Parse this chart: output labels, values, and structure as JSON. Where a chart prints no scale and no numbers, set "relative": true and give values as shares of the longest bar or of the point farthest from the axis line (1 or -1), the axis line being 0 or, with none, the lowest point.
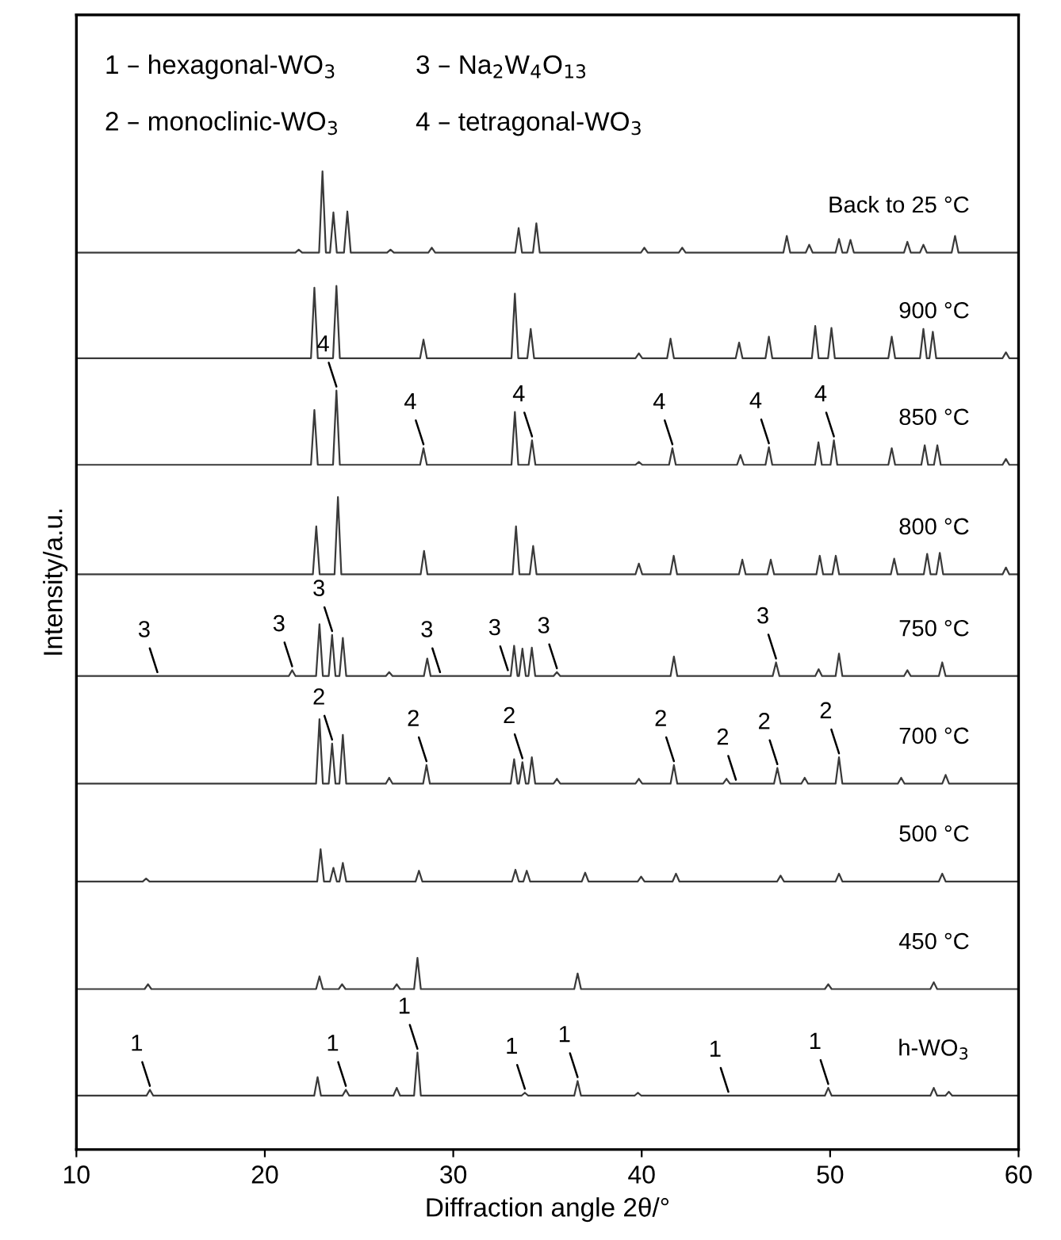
{
  "chart_data": {
    "type": "line",
    "relative": true,
    "xlabel": "Diffraction angle 2θ/°",
    "ylabel": "Intensity/a.u.",
    "xlim": [
      10,
      60
    ],
    "xticks": [
      10,
      20,
      30,
      40,
      50,
      60
    ],
    "tick_labels": "x",
    "series": [
      {
        "name": "Back to 25 °C",
        "color": "#3a3a3a",
        "x": [
          10,
          21.62,
          21.8,
          21.98,
          22.88,
          23.06,
          23.24,
          23.46,
          23.64,
          23.82,
          24.2,
          24.38,
          24.56,
          26.49,
          26.67,
          26.85,
          28.68,
          28.86,
          29.04,
          33.29,
          33.47,
          33.65,
          34.23,
          34.41,
          34.59,
          39.96,
          40.14,
          40.32,
          41.97,
          42.15,
          42.33,
          47.52,
          47.7,
          47.88,
          48.71,
          48.89,
          49.07,
          50.29,
          50.47,
          50.65,
          50.9,
          51.08,
          51.26,
          53.92,
          54.1,
          54.28,
          54.77,
          54.95,
          55.13,
          56.45,
          56.63,
          56.81,
          60
        ],
        "values": [
          0.917,
          0.917,
          0.92,
          0.917,
          0.917,
          1.0,
          0.917,
          0.917,
          0.958,
          0.917,
          0.917,
          0.959,
          0.917,
          0.917,
          0.92,
          0.917,
          0.917,
          0.922,
          0.917,
          0.917,
          0.942,
          0.917,
          0.917,
          0.947,
          0.917,
          0.917,
          0.922,
          0.917,
          0.917,
          0.922,
          0.917,
          0.917,
          0.934,
          0.917,
          0.917,
          0.925,
          0.917,
          0.917,
          0.931,
          0.917,
          0.917,
          0.93,
          0.917,
          0.917,
          0.928,
          0.917,
          0.917,
          0.925,
          0.917,
          0.917,
          0.934,
          0.917,
          0.917
        ]
      },
      {
        "name": "900 °C",
        "color": "#3a3a3a",
        "x": [
          10,
          22.45,
          22.63,
          22.81,
          23.62,
          23.8,
          23.98,
          28.24,
          28.42,
          28.6,
          33.09,
          33.27,
          33.45,
          33.93,
          34.11,
          34.29,
          39.67,
          39.85,
          40.03,
          41.35,
          41.53,
          41.71,
          44.99,
          45.17,
          45.35,
          46.57,
          46.75,
          46.93,
          49.03,
          49.21,
          49.39,
          49.89,
          50.07,
          50.25,
          53.09,
          53.27,
          53.45,
          54.77,
          54.95,
          55.13,
          55.27,
          55.45,
          55.63,
          59.15,
          59.33,
          59.51,
          60
        ],
        "values": [
          0.809,
          0.809,
          0.881,
          0.809,
          0.809,
          0.883,
          0.809,
          0.809,
          0.828,
          0.809,
          0.809,
          0.875,
          0.809,
          0.809,
          0.839,
          0.809,
          0.809,
          0.814,
          0.809,
          0.809,
          0.829,
          0.809,
          0.809,
          0.825,
          0.809,
          0.809,
          0.831,
          0.809,
          0.809,
          0.842,
          0.809,
          0.809,
          0.84,
          0.809,
          0.809,
          0.831,
          0.809,
          0.809,
          0.839,
          0.809,
          0.809,
          0.836,
          0.809,
          0.809,
          0.815,
          0.809,
          0.809
        ]
      },
      {
        "name": "850 °C",
        "color": "#3a3a3a",
        "x": [
          10,
          22.45,
          22.63,
          22.81,
          23.62,
          23.8,
          23.98,
          28.24,
          28.42,
          28.6,
          33.09,
          33.27,
          33.45,
          34.0,
          34.18,
          34.36,
          39.67,
          39.85,
          40.03,
          41.45,
          41.63,
          41.81,
          45.06,
          45.24,
          45.42,
          46.57,
          46.75,
          46.93,
          49.2,
          49.38,
          49.56,
          50.02,
          50.2,
          50.38,
          53.09,
          53.27,
          53.45,
          54.84,
          55.02,
          55.2,
          55.51,
          55.69,
          55.87,
          59.15,
          59.33,
          59.51,
          60
        ],
        "values": [
          0.7,
          0.7,
          0.756,
          0.7,
          0.7,
          0.776,
          0.7,
          0.7,
          0.717,
          0.7,
          0.7,
          0.754,
          0.7,
          0.7,
          0.725,
          0.7,
          0.7,
          0.703,
          0.7,
          0.7,
          0.717,
          0.7,
          0.7,
          0.71,
          0.7,
          0.7,
          0.718,
          0.7,
          0.7,
          0.723,
          0.7,
          0.7,
          0.725,
          0.7,
          0.7,
          0.717,
          0.7,
          0.7,
          0.72,
          0.7,
          0.7,
          0.72,
          0.7,
          0.7,
          0.706,
          0.7,
          0.7
        ]
      },
      {
        "name": "800 °C",
        "color": "#3a3a3a",
        "x": [
          10,
          22.55,
          22.73,
          22.91,
          23.7,
          23.88,
          24.06,
          28.27,
          28.45,
          28.63,
          33.15,
          33.33,
          33.51,
          34.06,
          34.24,
          34.42,
          39.67,
          39.85,
          40.03,
          41.52,
          41.7,
          41.88,
          45.16,
          45.34,
          45.52,
          46.67,
          46.85,
          47.03,
          49.27,
          49.45,
          49.63,
          50.12,
          50.3,
          50.48,
          53.22,
          53.4,
          53.58,
          54.97,
          55.15,
          55.33,
          55.64,
          55.82,
          56.0,
          59.15,
          59.33,
          59.51,
          60
        ],
        "values": [
          0.588,
          0.588,
          0.637,
          0.588,
          0.588,
          0.667,
          0.588,
          0.588,
          0.612,
          0.588,
          0.588,
          0.637,
          0.588,
          0.588,
          0.617,
          0.588,
          0.588,
          0.599,
          0.588,
          0.588,
          0.607,
          0.588,
          0.588,
          0.603,
          0.588,
          0.588,
          0.603,
          0.588,
          0.588,
          0.607,
          0.588,
          0.588,
          0.607,
          0.588,
          0.588,
          0.604,
          0.588,
          0.588,
          0.609,
          0.588,
          0.588,
          0.61,
          0.588,
          0.588,
          0.595,
          0.588,
          0.588
        ]
      },
      {
        "name": "750 °C",
        "color": "#3a3a3a",
        "x": [
          10,
          21.27,
          21.45,
          21.63,
          22.72,
          22.9,
          23.08,
          23.39,
          23.57,
          23.75,
          23.96,
          24.14,
          24.32,
          26.42,
          26.6,
          26.78,
          28.44,
          28.62,
          28.8,
          33.05,
          33.23,
          33.41,
          33.49,
          33.67,
          33.85,
          33.99,
          34.17,
          34.35,
          35.32,
          35.5,
          35.68,
          41.53,
          41.71,
          41.89,
          46.95,
          47.13,
          47.31,
          49.21,
          49.39,
          49.57,
          50.29,
          50.47,
          50.65,
          53.92,
          54.1,
          54.28,
          55.77,
          55.95,
          56.13,
          60
        ],
        "values": [
          0.484,
          0.484,
          0.49,
          0.484,
          0.484,
          0.537,
          0.484,
          0.484,
          0.526,
          0.484,
          0.484,
          0.523,
          0.484,
          0.484,
          0.488,
          0.484,
          0.484,
          0.502,
          0.484,
          0.484,
          0.515,
          0.484,
          0.484,
          0.512,
          0.484,
          0.484,
          0.513,
          0.484,
          0.484,
          0.488,
          0.484,
          0.484,
          0.504,
          0.484,
          0.484,
          0.498,
          0.484,
          0.484,
          0.491,
          0.484,
          0.484,
          0.507,
          0.484,
          0.484,
          0.49,
          0.484,
          0.484,
          0.498,
          0.484,
          0.484
        ]
      },
      {
        "name": "700 °C",
        "color": "#3a3a3a",
        "x": [
          10,
          22.72,
          22.9,
          23.08,
          23.39,
          23.57,
          23.75,
          23.96,
          24.14,
          24.32,
          26.42,
          26.6,
          26.78,
          28.4,
          28.58,
          28.76,
          33.05,
          33.23,
          33.41,
          33.49,
          33.67,
          33.85,
          33.99,
          34.17,
          34.35,
          35.32,
          35.5,
          35.68,
          39.67,
          39.85,
          40.03,
          41.53,
          41.71,
          41.89,
          44.32,
          44.5,
          44.68,
          47.02,
          47.2,
          47.38,
          48.47,
          48.65,
          48.83,
          50.29,
          50.47,
          50.65,
          53.59,
          53.77,
          53.95,
          55.95,
          56.13,
          56.31,
          60
        ],
        "values": [
          0.374,
          0.374,
          0.44,
          0.374,
          0.374,
          0.415,
          0.374,
          0.374,
          0.424,
          0.374,
          0.374,
          0.38,
          0.374,
          0.374,
          0.393,
          0.374,
          0.374,
          0.399,
          0.374,
          0.374,
          0.396,
          0.374,
          0.374,
          0.401,
          0.374,
          0.374,
          0.379,
          0.374,
          0.374,
          0.379,
          0.374,
          0.374,
          0.393,
          0.374,
          0.374,
          0.379,
          0.374,
          0.374,
          0.39,
          0.374,
          0.374,
          0.38,
          0.374,
          0.374,
          0.401,
          0.374,
          0.374,
          0.38,
          0.374,
          0.374,
          0.383,
          0.374,
          0.374
        ]
      },
      {
        "name": "500 °C",
        "color": "#3a3a3a",
        "x": [
          10,
          13.52,
          13.7,
          13.88,
          22.78,
          22.96,
          23.14,
          23.46,
          23.64,
          23.82,
          23.96,
          24.14,
          24.32,
          28.0,
          28.18,
          28.36,
          33.12,
          33.3,
          33.48,
          33.72,
          33.9,
          34.08,
          36.82,
          37.0,
          37.18,
          39.79,
          39.97,
          40.15,
          41.64,
          41.82,
          42.0,
          47.19,
          47.37,
          47.55,
          50.29,
          50.47,
          50.65,
          55.77,
          55.95,
          56.13,
          60
        ],
        "values": [
          0.274,
          0.274,
          0.277,
          0.274,
          0.274,
          0.307,
          0.274,
          0.274,
          0.288,
          0.274,
          0.274,
          0.293,
          0.274,
          0.274,
          0.285,
          0.274,
          0.274,
          0.286,
          0.274,
          0.274,
          0.285,
          0.274,
          0.274,
          0.283,
          0.274,
          0.274,
          0.279,
          0.274,
          0.274,
          0.282,
          0.274,
          0.274,
          0.28,
          0.274,
          0.274,
          0.282,
          0.274,
          0.274,
          0.282,
          0.274,
          0.274
        ]
      },
      {
        "name": "450 °C",
        "color": "#3a3a3a",
        "x": [
          10,
          13.62,
          13.8,
          13.98,
          22.72,
          22.9,
          23.08,
          23.92,
          24.1,
          24.28,
          26.82,
          27.0,
          27.18,
          27.92,
          28.1,
          28.28,
          36.42,
          36.6,
          36.78,
          49.72,
          49.9,
          50.08,
          55.32,
          55.5,
          55.68,
          60
        ],
        "values": [
          0.164,
          0.164,
          0.169,
          0.164,
          0.164,
          0.177,
          0.164,
          0.164,
          0.169,
          0.164,
          0.164,
          0.169,
          0.164,
          0.164,
          0.196,
          0.164,
          0.164,
          0.18,
          0.164,
          0.164,
          0.169,
          0.164,
          0.164,
          0.171,
          0.164,
          0.164
        ]
      },
      {
        "name": "h-WO$_{3}$",
        "color": "#3a3a3a",
        "x": [
          10,
          13.72,
          13.9,
          14.08,
          22.62,
          22.8,
          22.98,
          24.12,
          24.3,
          24.48,
          26.82,
          27.0,
          27.18,
          27.92,
          28.1,
          28.28,
          33.62,
          33.8,
          33.98,
          36.42,
          36.6,
          36.78,
          39.62,
          39.8,
          39.98,
          49.72,
          49.9,
          50.08,
          55.32,
          55.5,
          55.68,
          56.12,
          56.3,
          56.48,
          60
        ],
        "values": [
          0.055,
          0.055,
          0.061,
          0.055,
          0.055,
          0.074,
          0.055,
          0.055,
          0.061,
          0.055,
          0.055,
          0.063,
          0.055,
          0.055,
          0.099,
          0.055,
          0.055,
          0.058,
          0.055,
          0.055,
          0.07,
          0.055,
          0.055,
          0.058,
          0.055,
          0.055,
          0.063,
          0.055,
          0.055,
          0.063,
          0.055,
          0.055,
          0.059,
          0.055,
          0.055
        ]
      }
    ],
    "annotations": [
      "1 – hexagonal-WO$_{3}$",
      "3 – Na$_{2}$W$_{4}$O$_{13}$",
      "2 – monoclinic-WO$_{3}$",
      "4 – tetragonal-WO$_{3}$",
      {
        "text": "1",
        "x": 13.9,
        "y": 0.061
      },
      {
        "text": "1",
        "x": 24.3,
        "y": 0.061
      },
      {
        "text": "1",
        "x": 28.1,
        "y": 0.099
      },
      {
        "text": "1",
        "x": 33.8,
        "y": 0.058
      },
      {
        "text": "1",
        "x": 36.6,
        "y": 0.07
      },
      {
        "text": "1",
        "x": 44.6,
        "y": 0.055
      },
      {
        "text": "1",
        "x": 49.9,
        "y": 0.063
      },
      {
        "text": "2",
        "x": 23.57,
        "y": 0.415
      },
      {
        "text": "2",
        "x": 28.58,
        "y": 0.393
      },
      {
        "text": "2",
        "x": 33.67,
        "y": 0.396
      },
      {
        "text": "2",
        "x": 41.71,
        "y": 0.393
      },
      {
        "text": "2",
        "x": 45.0,
        "y": 0.374
      },
      {
        "text": "2",
        "x": 47.2,
        "y": 0.39
      },
      {
        "text": "2",
        "x": 50.47,
        "y": 0.401
      },
      {
        "text": "3",
        "x": 14.3,
        "y": 0.484
      },
      {
        "text": "3",
        "x": 21.45,
        "y": 0.49
      },
      {
        "text": "3",
        "x": 23.57,
        "y": 0.526
      },
      {
        "text": "3",
        "x": 29.3,
        "y": 0.484
      },
      {
        "text": "3",
        "x": 32.9,
        "y": 0.486
      },
      {
        "text": "3",
        "x": 35.5,
        "y": 0.488
      },
      {
        "text": "3",
        "x": 47.13,
        "y": 0.498
      },
      {
        "text": "4",
        "x": 23.8,
        "y": 0.776
      },
      {
        "text": "4",
        "x": 28.42,
        "y": 0.717
      },
      {
        "text": "4",
        "x": 34.18,
        "y": 0.725
      },
      {
        "text": "4",
        "x": 41.63,
        "y": 0.717
      },
      {
        "text": "4",
        "x": 46.75,
        "y": 0.718
      },
      {
        "text": "4",
        "x": 50.2,
        "y": 0.725
      }
    ]
  }
}
